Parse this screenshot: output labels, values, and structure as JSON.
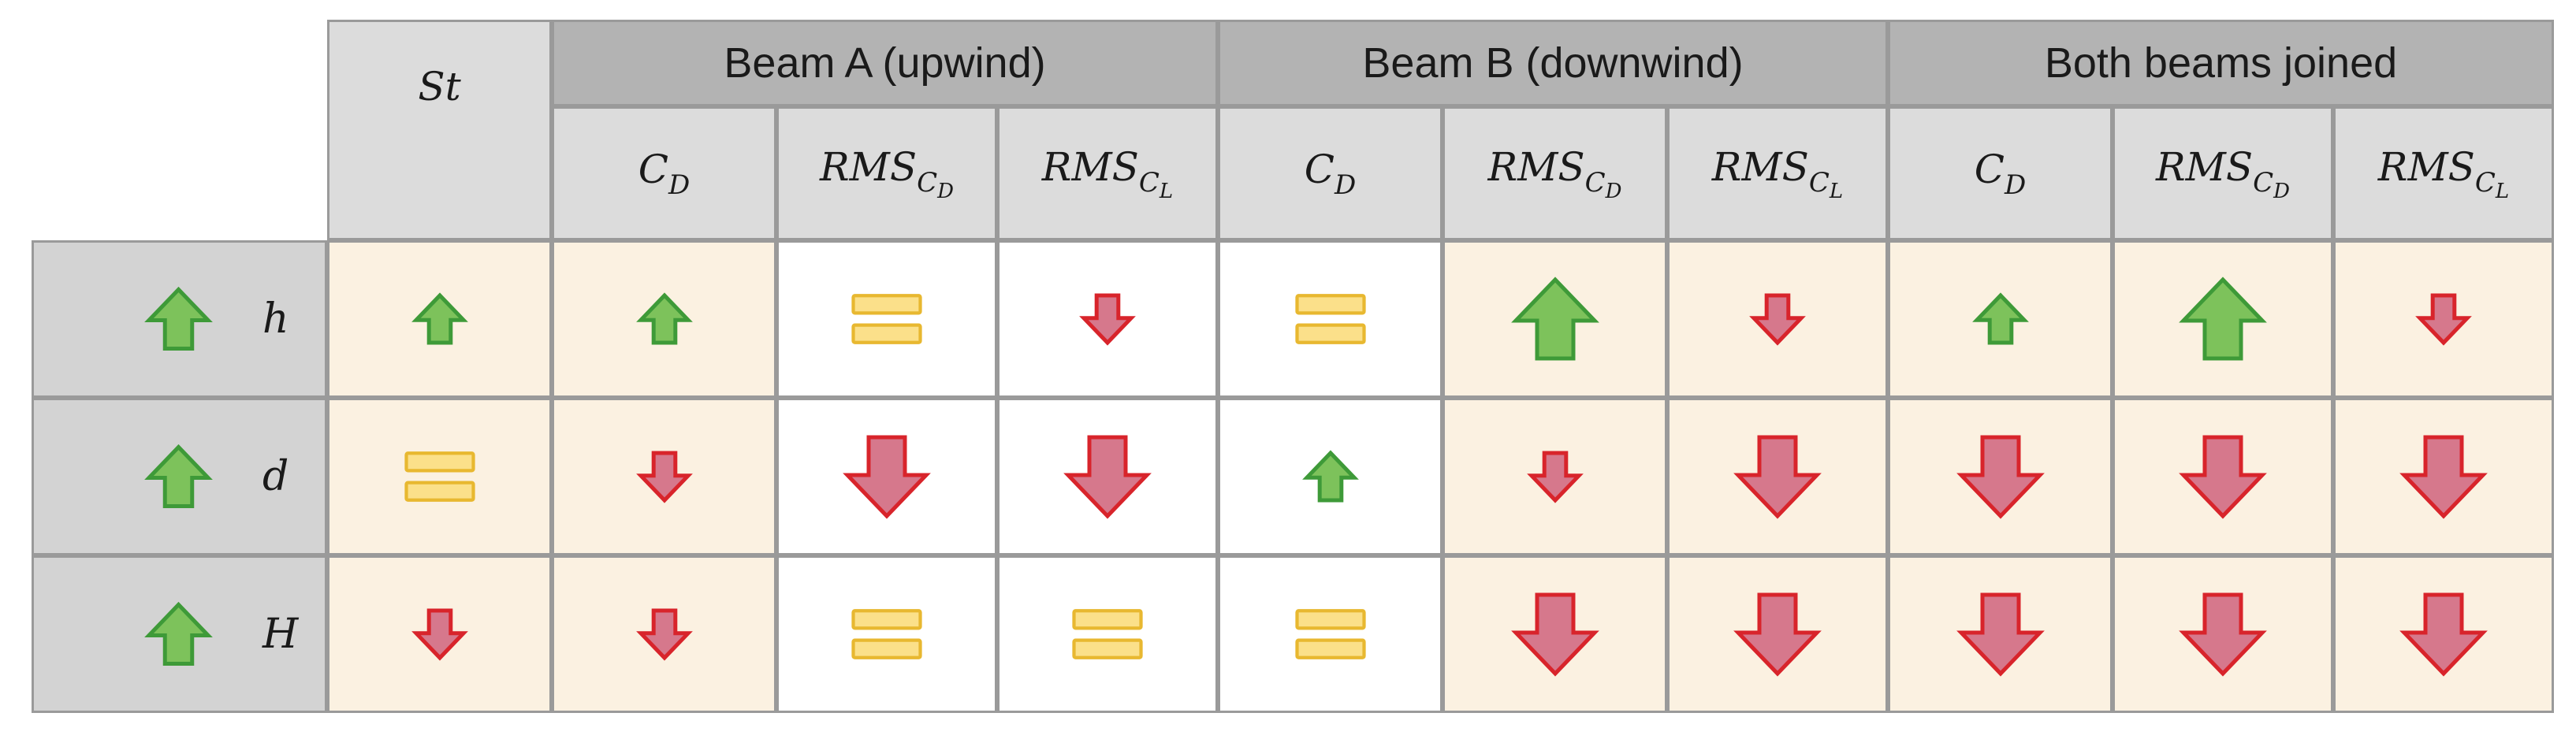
{
  "groups": [
    {
      "label": "Beam A (upwind)"
    },
    {
      "label": "Beam B (downwind)"
    },
    {
      "label": "Both beams joined"
    }
  ],
  "strouhal": {
    "main": "St"
  },
  "metrics": [
    {
      "main": "C",
      "sub": "D",
      "subsub": ""
    },
    {
      "main": "RMS",
      "sub": "C",
      "subsub": "D"
    },
    {
      "main": "RMS",
      "sub": "C",
      "subsub": "L"
    },
    {
      "main": "C",
      "sub": "D",
      "subsub": ""
    },
    {
      "main": "RMS",
      "sub": "C",
      "subsub": "D"
    },
    {
      "main": "RMS",
      "sub": "C",
      "subsub": "L"
    },
    {
      "main": "C",
      "sub": "D",
      "subsub": ""
    },
    {
      "main": "RMS",
      "sub": "C",
      "subsub": "D"
    },
    {
      "main": "RMS",
      "sub": "C",
      "subsub": "L"
    }
  ],
  "rows": [
    {
      "param": "h",
      "param_icon": "green-up-arrow-icon",
      "cells": [
        {
          "kind": "up",
          "size": "small",
          "bg": "beige"
        },
        {
          "kind": "up",
          "size": "small",
          "bg": "beige"
        },
        {
          "kind": "equal",
          "size": "medium",
          "bg": "white"
        },
        {
          "kind": "down",
          "size": "small",
          "bg": "white"
        },
        {
          "kind": "equal",
          "size": "medium",
          "bg": "white"
        },
        {
          "kind": "up",
          "size": "large",
          "bg": "beige"
        },
        {
          "kind": "down",
          "size": "small",
          "bg": "beige"
        },
        {
          "kind": "up",
          "size": "small",
          "bg": "beige"
        },
        {
          "kind": "up",
          "size": "large",
          "bg": "beige"
        },
        {
          "kind": "down",
          "size": "small",
          "bg": "beige"
        }
      ]
    },
    {
      "param": "d",
      "param_icon": "green-up-arrow-icon",
      "cells": [
        {
          "kind": "equal",
          "size": "medium",
          "bg": "beige"
        },
        {
          "kind": "down",
          "size": "small",
          "bg": "beige"
        },
        {
          "kind": "down",
          "size": "large",
          "bg": "white"
        },
        {
          "kind": "down",
          "size": "large",
          "bg": "white"
        },
        {
          "kind": "up",
          "size": "small",
          "bg": "white"
        },
        {
          "kind": "down",
          "size": "small",
          "bg": "beige"
        },
        {
          "kind": "down",
          "size": "large",
          "bg": "beige"
        },
        {
          "kind": "down",
          "size": "large",
          "bg": "beige"
        },
        {
          "kind": "down",
          "size": "large",
          "bg": "beige"
        },
        {
          "kind": "down",
          "size": "large",
          "bg": "beige"
        }
      ]
    },
    {
      "param": "H",
      "param_icon": "green-up-arrow-icon",
      "cells": [
        {
          "kind": "down",
          "size": "small",
          "bg": "beige"
        },
        {
          "kind": "down",
          "size": "small",
          "bg": "beige"
        },
        {
          "kind": "equal",
          "size": "medium",
          "bg": "white"
        },
        {
          "kind": "equal",
          "size": "medium",
          "bg": "white"
        },
        {
          "kind": "equal",
          "size": "medium",
          "bg": "white"
        },
        {
          "kind": "down",
          "size": "large",
          "bg": "beige"
        },
        {
          "kind": "down",
          "size": "large",
          "bg": "beige"
        },
        {
          "kind": "down",
          "size": "large",
          "bg": "beige"
        },
        {
          "kind": "down",
          "size": "large",
          "bg": "beige"
        },
        {
          "kind": "down",
          "size": "large",
          "bg": "beige"
        }
      ]
    }
  ],
  "colors": {
    "up_fill": "#7dc25b",
    "up_stroke": "#3e9a38",
    "down_fill": "#d6788c",
    "down_stroke": "#d8242b",
    "equal_fill": "#fbe08a",
    "equal_stroke": "#e8b830",
    "header_dark": "#b3b3b3",
    "header_light": "#dcdcdc",
    "beige": "#fbf1e1"
  }
}
